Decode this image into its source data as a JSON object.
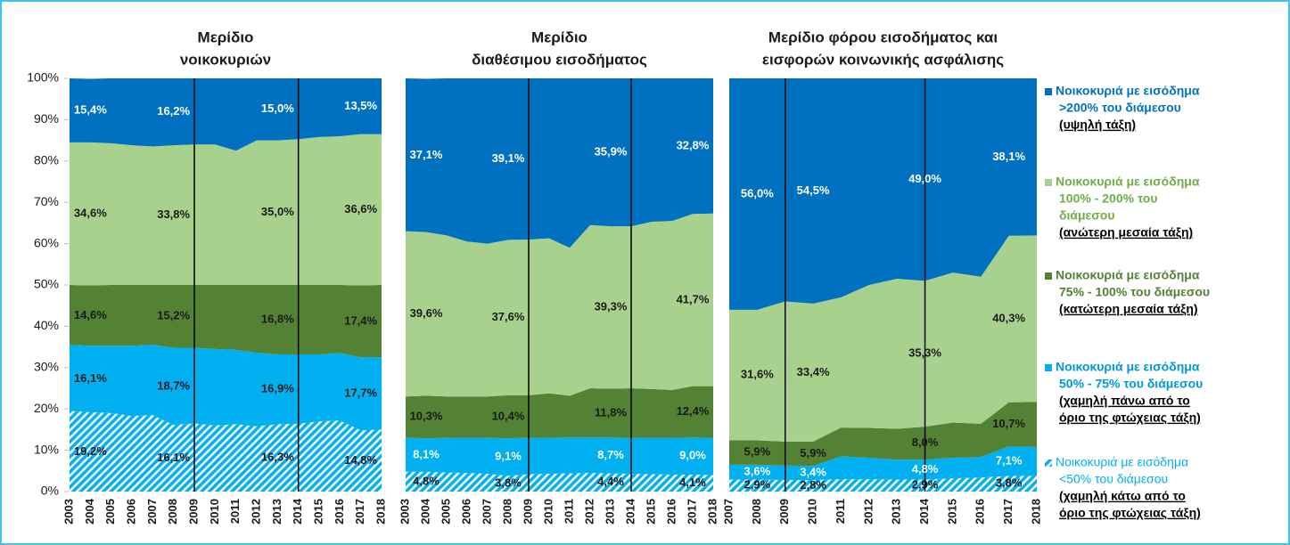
{
  "chart_data": [
    {
      "type": "area",
      "title_lines": [
        "Μερίδιο",
        "νοικοκυριών"
      ],
      "x": [
        2003,
        2004,
        2005,
        2006,
        2007,
        2008,
        2009,
        2010,
        2011,
        2012,
        2013,
        2014,
        2015,
        2016,
        2017,
        2018
      ],
      "xlim": [
        2003,
        2018
      ],
      "ylim": [
        0,
        100
      ],
      "yticks": [
        {
          "value": 0,
          "label": "0%"
        },
        {
          "value": 10,
          "label": "10%"
        },
        {
          "value": 20,
          "label": "20%"
        },
        {
          "value": 30,
          "label": "30%"
        },
        {
          "value": 40,
          "label": "40%"
        },
        {
          "value": 50,
          "label": "50%"
        },
        {
          "value": 60,
          "label": "60%"
        },
        {
          "value": 70,
          "label": "70%"
        },
        {
          "value": 80,
          "label": "80%"
        },
        {
          "value": 90,
          "label": "90%"
        },
        {
          "value": 100,
          "label": "100%"
        }
      ],
      "vlines": [
        2009,
        2014
      ],
      "series": [
        {
          "color": "#00b0f0",
          "hatch": true,
          "label_color": "#1a1a1a",
          "values": [
            19.5,
            19.2,
            19.0,
            18.3,
            18.5,
            16.1,
            16.5,
            16.0,
            16.3,
            15.8,
            16.3,
            16.4,
            17.0,
            17.2,
            14.8,
            15.0
          ],
          "value_labels": [
            null,
            "19,2%",
            null,
            null,
            null,
            "16,1%",
            null,
            null,
            null,
            null,
            "16,3%",
            null,
            null,
            null,
            "14,8%",
            null
          ]
        },
        {
          "color": "#00b0f0",
          "label_color": "#1a1a1a",
          "values": [
            16.0,
            16.1,
            16.3,
            17.0,
            17.0,
            18.7,
            18.3,
            18.5,
            18.0,
            17.8,
            16.9,
            16.8,
            16.2,
            16.3,
            17.7,
            17.5
          ],
          "value_labels": [
            null,
            "16,1%",
            null,
            null,
            null,
            "18,7%",
            null,
            null,
            null,
            null,
            "16,9%",
            null,
            null,
            null,
            "17,7%",
            null
          ]
        },
        {
          "color": "#548235",
          "label_color": "#1a1a1a",
          "values": [
            14.5,
            14.6,
            14.7,
            14.7,
            14.5,
            15.2,
            15.2,
            15.5,
            15.7,
            16.4,
            16.8,
            16.8,
            16.8,
            16.5,
            17.4,
            17.5
          ],
          "value_labels": [
            null,
            "14,6%",
            null,
            null,
            null,
            "15,2%",
            null,
            null,
            null,
            null,
            "16,8%",
            null,
            null,
            null,
            "17,4%",
            null
          ]
        },
        {
          "color": "#a9d18e",
          "label_color": "#1a1a1a",
          "values": [
            34.5,
            34.6,
            34.3,
            33.8,
            33.5,
            33.8,
            34.0,
            34.0,
            32.5,
            35.0,
            35.0,
            35.3,
            35.8,
            36.0,
            36.6,
            36.5
          ],
          "value_labels": [
            null,
            "34,6%",
            null,
            null,
            null,
            "33,8%",
            null,
            null,
            null,
            null,
            "35,0%",
            null,
            null,
            null,
            "36,6%",
            null
          ]
        },
        {
          "color": "#0070c0",
          "label_color": "#ffffff",
          "values": [
            15.5,
            15.4,
            15.7,
            16.2,
            16.5,
            16.2,
            16.0,
            16.0,
            17.5,
            15.0,
            15.0,
            14.7,
            14.2,
            14.0,
            13.5,
            13.5
          ],
          "value_labels": [
            null,
            "15,4%",
            null,
            null,
            null,
            "16,2%",
            null,
            null,
            null,
            null,
            "15,0%",
            null,
            null,
            null,
            "13,5%",
            null
          ]
        }
      ]
    },
    {
      "type": "area",
      "title_lines": [
        "Μερίδιο",
        "διαθέσιμου εισοδήματος"
      ],
      "x": [
        2003,
        2004,
        2005,
        2006,
        2007,
        2008,
        2009,
        2010,
        2011,
        2012,
        2013,
        2014,
        2015,
        2016,
        2017,
        2018
      ],
      "xlim": [
        2003,
        2018
      ],
      "ylim": [
        0,
        100
      ],
      "vlines": [
        2009,
        2014
      ],
      "series": [
        {
          "color": "#00b0f0",
          "hatch": true,
          "label_color": "#1a1a1a",
          "values": [
            4.8,
            4.8,
            4.6,
            4.5,
            4.3,
            3.8,
            4.2,
            4.3,
            4.4,
            4.5,
            4.4,
            4.3,
            4.2,
            4.1,
            4.1,
            4.0
          ],
          "value_labels": [
            null,
            "4,8%",
            null,
            null,
            null,
            "3,8%",
            null,
            null,
            null,
            null,
            "4,4%",
            null,
            null,
            null,
            "4,1%",
            null
          ]
        },
        {
          "color": "#00b0f0",
          "label_color": "#ffffff",
          "values": [
            8.2,
            8.1,
            8.4,
            8.5,
            8.7,
            9.1,
            8.8,
            8.7,
            8.7,
            8.6,
            8.7,
            8.7,
            8.8,
            8.9,
            9.0,
            9.0
          ],
          "value_labels": [
            null,
            "8,1%",
            null,
            null,
            null,
            "9,1%",
            null,
            null,
            null,
            null,
            "8,7%",
            null,
            null,
            null,
            "9,0%",
            null
          ]
        },
        {
          "color": "#548235",
          "label_color": "#1a1a1a",
          "values": [
            10.0,
            10.3,
            10.0,
            10.0,
            10.0,
            10.4,
            10.3,
            10.8,
            10.1,
            11.9,
            11.8,
            12.0,
            11.8,
            11.6,
            12.4,
            12.5
          ],
          "value_labels": [
            null,
            "10,3%",
            null,
            null,
            null,
            "10,4%",
            null,
            null,
            null,
            null,
            "11,8%",
            null,
            null,
            null,
            "12,4%",
            null
          ]
        },
        {
          "color": "#a9d18e",
          "label_color": "#1a1a1a",
          "values": [
            40.0,
            39.6,
            39.0,
            37.5,
            37.0,
            37.6,
            37.7,
            37.5,
            35.8,
            39.5,
            39.3,
            39.2,
            40.5,
            40.9,
            41.7,
            41.8
          ],
          "value_labels": [
            null,
            "39,6%",
            null,
            null,
            null,
            "37,6%",
            null,
            null,
            null,
            null,
            "39,3%",
            null,
            null,
            null,
            "41,7%",
            null
          ]
        },
        {
          "color": "#0070c0",
          "label_color": "#ffffff",
          "values": [
            37.0,
            37.1,
            38.0,
            39.5,
            40.0,
            39.1,
            39.0,
            38.7,
            41.0,
            35.5,
            35.9,
            35.8,
            34.7,
            34.5,
            32.8,
            32.7
          ],
          "value_labels": [
            null,
            "37,1%",
            null,
            null,
            null,
            "39,1%",
            null,
            null,
            null,
            null,
            "35,9%",
            null,
            null,
            null,
            "32,8%",
            null
          ]
        }
      ]
    },
    {
      "type": "area",
      "title_lines": [
        "Μερίδιο φόρου εισοδήματος και",
        "εισφορών κοινωνικής ασφάλισης"
      ],
      "x": [
        2007,
        2008,
        2009,
        2010,
        2011,
        2012,
        2013,
        2014,
        2015,
        2016,
        2017,
        2018
      ],
      "xlim": [
        2007,
        2018
      ],
      "ylim": [
        0,
        100
      ],
      "vlines": [
        2009,
        2014
      ],
      "series": [
        {
          "color": "#00b0f0",
          "hatch": true,
          "label_color": "#1a1a1a",
          "values": [
            2.9,
            2.9,
            2.8,
            2.8,
            3.0,
            3.0,
            2.9,
            2.9,
            3.2,
            3.4,
            3.8,
            3.8
          ],
          "value_labels": [
            null,
            "2,9%",
            null,
            "2,8%",
            null,
            null,
            null,
            "2,9%",
            null,
            null,
            "3,8%",
            null
          ]
        },
        {
          "color": "#00b0f0",
          "label_color": "#ffffff",
          "values": [
            3.6,
            3.6,
            3.5,
            3.4,
            5.5,
            5.2,
            4.8,
            4.8,
            5.0,
            5.0,
            7.1,
            7.0
          ],
          "value_labels": [
            null,
            "3,6%",
            null,
            "3,4%",
            null,
            null,
            null,
            "4,8%",
            null,
            null,
            "7,1%",
            null
          ]
        },
        {
          "color": "#548235",
          "label_color": "#1a1a1a",
          "values": [
            5.9,
            5.9,
            5.8,
            5.9,
            7.0,
            7.2,
            7.5,
            8.0,
            8.5,
            8.0,
            10.7,
            10.9
          ],
          "value_labels": [
            null,
            "5,9%",
            null,
            "5,9%",
            null,
            null,
            null,
            "8,0%",
            null,
            null,
            "10,7%",
            null
          ]
        },
        {
          "color": "#a9d18e",
          "label_color": "#1a1a1a",
          "values": [
            31.6,
            31.6,
            33.9,
            33.4,
            31.5,
            34.6,
            36.3,
            35.3,
            36.3,
            35.6,
            40.3,
            40.3
          ],
          "value_labels": [
            null,
            "31,6%",
            null,
            "33,4%",
            null,
            null,
            null,
            "35,3%",
            null,
            null,
            "40,3%",
            null
          ]
        },
        {
          "color": "#0070c0",
          "label_color": "#ffffff",
          "values": [
            56.0,
            56.0,
            54.0,
            54.5,
            53.0,
            50.0,
            48.5,
            49.0,
            47.0,
            48.0,
            38.1,
            38.0
          ],
          "value_labels": [
            null,
            "56,0%",
            null,
            "54,5%",
            null,
            null,
            null,
            "49,0%",
            null,
            null,
            "38,1%",
            null
          ]
        }
      ]
    }
  ],
  "legend": [
    {
      "color": "#0070c0",
      "text_color": "#0070c0",
      "bold": true,
      "lines": [
        "Νοικοκυριά με εισόδημα",
        ">200% του διάμεσου"
      ],
      "note": [
        "(υψηλή τάξη)"
      ]
    },
    {
      "color": "#a9d18e",
      "text_color": "#70ad47",
      "bold": true,
      "lines": [
        "Νοικοκυριά με εισόδημα",
        "100% - 200% του",
        "διάμεσου"
      ],
      "note": [
        "(ανώτερη μεσαία τάξη)"
      ]
    },
    {
      "color": "#548235",
      "text_color": "#548235",
      "bold": true,
      "lines": [
        "Νοικοκυριά με εισόδημα",
        "75% - 100% του διάμεσου"
      ],
      "note": [
        "(κατώτερη μεσαία τάξη)"
      ]
    },
    {
      "color": "#00b0f0",
      "text_color": "#0099d8",
      "bold": true,
      "lines": [
        "Νοικοκυριά με εισόδημα",
        "50% - 75% του διάμεσου"
      ],
      "note": [
        "(χαμηλή πάνω από το",
        "όριο της φτώχειας τάξη)"
      ]
    },
    {
      "color": "#00b0f0",
      "hatch": true,
      "text_color": "#00b0f0",
      "bold": false,
      "lines": [
        "Νοικοκυριά με εισόδημα",
        "<50% του διάμεσου"
      ],
      "note": [
        "(χαμηλή κάτω από το",
        "όριο της φτώχειας τάξη)"
      ]
    }
  ]
}
